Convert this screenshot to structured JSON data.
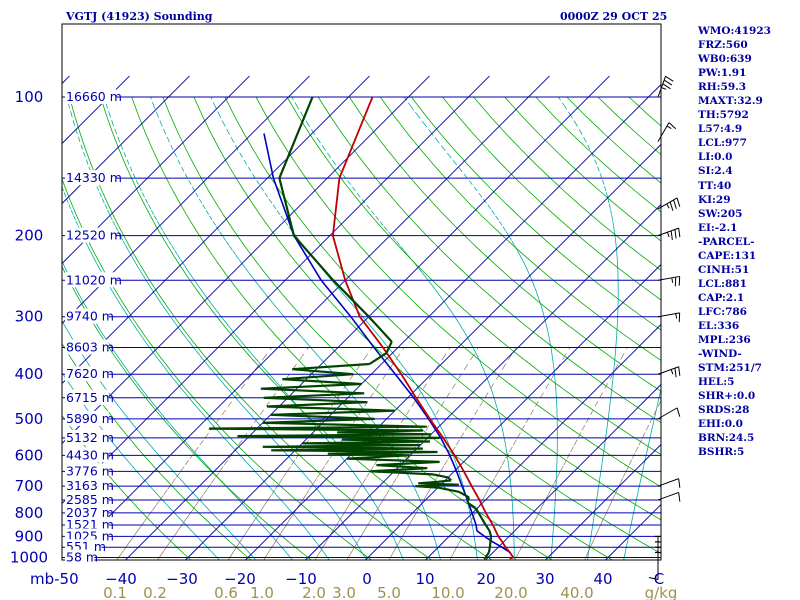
{
  "header": {
    "station_title": "VGTJ (41923) Sounding",
    "valid_time": "0000Z 29 OCT 25"
  },
  "indices": [
    "WMO:41923",
    "FRZ:560",
    "WB0:639",
    "PW:1.91",
    "RH:59.3",
    "MAXT:32.9",
    "TH:5792",
    "L57:4.9",
    "LCL:977",
    "LI:0.0",
    "SI:2.4",
    "TT:40",
    "KI:29",
    "SW:205",
    "EI:-2.1",
    "-PARCEL-",
    "CAPE:131",
    "CINH:51",
    "LCL:881",
    "CAP:2.1",
    "LFC:786",
    "EL:336",
    "MPL:236",
    "-WIND-",
    "STM:251/7",
    "HEL:5",
    "SHR+:0.0",
    "SRDS:28",
    "EHI:0.0",
    "BRN:24.5",
    "BSHR:5"
  ],
  "colors": {
    "isobar": "#0000b0",
    "isotherm": "#0000b0",
    "dry_adiabat": "#00aa00",
    "moist_adiabat": "#00aaaa",
    "mixing_ratio": "#8a7a58",
    "temperature": "#c00000",
    "dewpoint": "#004400",
    "parcel": "#0000c0",
    "axis_text": "#0000b0",
    "mixing_text": "#a09050",
    "wind": "#000000"
  },
  "chart_data": {
    "type": "line",
    "title": "",
    "x_axis": {
      "tick_labels": [
        "mb-50",
        "−40",
        "−30",
        "−20",
        "−10",
        "0",
        "10",
        "20",
        "30",
        "40",
        "C"
      ],
      "xlim": [
        -50,
        50
      ]
    },
    "y_axis": {
      "scale": "log",
      "ylim": [
        1000,
        100
      ],
      "tick_labels": [
        "100",
        "200",
        "300",
        "400",
        "500",
        "600",
        "700",
        "800",
        "900",
        "1000"
      ]
    },
    "isobar_heights": [
      {
        "p": 100,
        "label": "16660 m"
      },
      {
        "p": 150,
        "label": "14330 m"
      },
      {
        "p": 200,
        "label": "12520 m"
      },
      {
        "p": 250,
        "label": "11020 m"
      },
      {
        "p": 300,
        "label": "9740 m"
      },
      {
        "p": 350,
        "label": "8603 m"
      },
      {
        "p": 400,
        "label": "7620 m"
      },
      {
        "p": 450,
        "label": "6715 m"
      },
      {
        "p": 500,
        "label": "5890 m"
      },
      {
        "p": 550,
        "label": "5132 m"
      },
      {
        "p": 600,
        "label": "4430 m"
      },
      {
        "p": 650,
        "label": "3776 m"
      },
      {
        "p": 700,
        "label": "3163 m"
      },
      {
        "p": 750,
        "label": "2585 m"
      },
      {
        "p": 800,
        "label": "2037 m"
      },
      {
        "p": 850,
        "label": "1521 m"
      },
      {
        "p": 900,
        "label": "1025 m"
      },
      {
        "p": 950,
        "label": "551 m"
      },
      {
        "p": 1000,
        "label": "58 m"
      }
    ],
    "mixing_ratio_labels": [
      "0.1",
      "0.2",
      "0.6",
      "1.0",
      "2.0",
      "3.0",
      "5.0",
      "10.0",
      "20.0",
      "40.0",
      "g/kg"
    ],
    "mixing_ratio_values": [
      0.1,
      0.2,
      0.6,
      1.0,
      2.0,
      3.0,
      5.0,
      10.0,
      20.0,
      40.0
    ],
    "series": [
      {
        "role": "temperature",
        "p": [
          1006,
          1000,
          975,
          950,
          925,
          900,
          850,
          800,
          750,
          700,
          650,
          600,
          550,
          500,
          450,
          400,
          350,
          300,
          250,
          200,
          150,
          100
        ],
        "t": [
          23.8,
          24.2,
          22.8,
          21.2,
          19.8,
          18.2,
          15.4,
          12.2,
          9.0,
          5.4,
          1.6,
          -2.6,
          -7.4,
          -12.8,
          -18.6,
          -25.0,
          -32.5,
          -41.5,
          -50.0,
          -59.5,
          -68.0,
          -76.0
        ]
      },
      {
        "role": "dewpoint",
        "p": [
          1006,
          1000,
          975,
          950,
          925,
          900,
          875,
          850,
          825,
          800,
          780,
          760,
          740,
          720,
          705,
          700,
          695,
          690,
          685,
          680,
          670,
          660,
          650,
          640,
          630,
          620,
          610,
          600,
          595,
          590,
          585,
          580,
          575,
          570,
          565,
          560,
          555,
          550,
          545,
          540,
          535,
          530,
          525,
          520,
          510,
          500,
          490,
          480,
          470,
          460,
          450,
          440,
          430,
          420,
          410,
          400,
          390,
          380,
          360,
          340,
          300,
          250,
          200,
          150,
          100
        ],
        "t": [
          19.5,
          19.6,
          19.3,
          18.6,
          17.8,
          17.0,
          15.8,
          14.2,
          12.6,
          11.0,
          9.6,
          7.4,
          6.8,
          4.2,
          0.0,
          -4.0,
          3.0,
          -4.0,
          -1.0,
          1.0,
          0.0,
          -3.0,
          -14.0,
          -5.0,
          -14.0,
          -4.0,
          -20.0,
          -10.0,
          -24.0,
          -6.0,
          -34.0,
          -9.0,
          -36.0,
          -10.0,
          -30.0,
          -9.0,
          -24.0,
          -8.0,
          -42.0,
          -10.0,
          -26.0,
          -12.0,
          -48.0,
          -12.0,
          -40.0,
          -22.0,
          -40.0,
          -20.0,
          -42.0,
          -26.0,
          -44.0,
          -28.0,
          -46.0,
          -30.0,
          -44.0,
          -33.0,
          -44.0,
          -32.0,
          -31.0,
          -32.0,
          -40.0,
          -52.0,
          -66.0,
          -78.0,
          -86.0
        ]
      },
      {
        "role": "parcel",
        "p": [
          1000,
          975,
          950,
          925,
          900,
          875,
          850,
          800,
          750,
          700,
          650,
          600,
          550,
          500,
          450,
          400,
          350,
          300,
          250,
          200,
          150,
          120
        ],
        "t": [
          24.2,
          22.8,
          20.6,
          18.2,
          15.9,
          13.7,
          12.6,
          9.9,
          7.0,
          3.8,
          0.4,
          -3.4,
          -7.8,
          -13.0,
          -19.0,
          -26.0,
          -34.0,
          -43.0,
          -54.0,
          -66.0,
          -79.0,
          -88.0
        ]
      }
    ],
    "wind_barbs": [
      {
        "p": 1000,
        "dir": 180,
        "spd": 10
      },
      {
        "p": 975,
        "dir": 160,
        "spd": 0
      },
      {
        "p": 950,
        "dir": 150,
        "spd": 0
      },
      {
        "p": 925,
        "dir": 140,
        "spd": 0
      },
      {
        "p": 900,
        "dir": 90,
        "spd": 0
      },
      {
        "p": 750,
        "dir": 70,
        "spd": 10
      },
      {
        "p": 700,
        "dir": 70,
        "spd": 10
      },
      {
        "p": 500,
        "dir": 60,
        "spd": 10
      },
      {
        "p": 400,
        "dir": 70,
        "spd": 25
      },
      {
        "p": 300,
        "dir": 80,
        "spd": 15
      },
      {
        "p": 250,
        "dir": 80,
        "spd": 25
      },
      {
        "p": 200,
        "dir": 70,
        "spd": 35
      },
      {
        "p": 175,
        "dir": 60,
        "spd": 35
      },
      {
        "p": 125,
        "dir": 30,
        "spd": 15
      },
      {
        "p": 100,
        "dir": 20,
        "spd": 35
      }
    ]
  }
}
